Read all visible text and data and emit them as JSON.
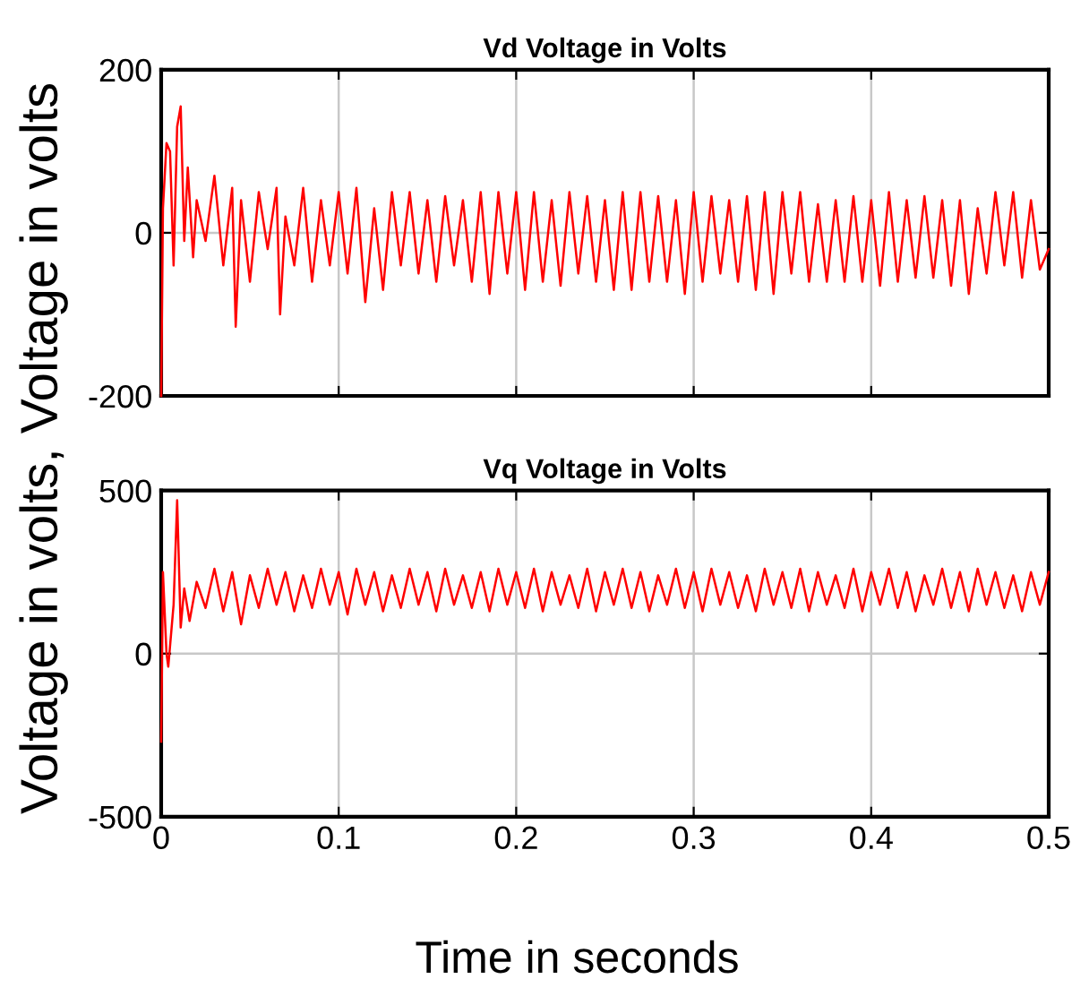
{
  "chart_data": [
    {
      "type": "line",
      "title": "Vd Voltage in Volts",
      "ylabel": "Voltage in volts, Voltage in volts",
      "grid": true,
      "tick_labels": "y",
      "xlim": [
        0,
        0.5
      ],
      "xticks": [
        0,
        0.1,
        0.2,
        0.3,
        0.4,
        0.5
      ],
      "ylim": [
        -200,
        200
      ],
      "yticks": [
        -200,
        0,
        200
      ],
      "x": [
        0,
        0.001,
        0.003,
        0.005,
        0.007,
        0.009,
        0.011,
        0.013,
        0.015,
        0.018,
        0.02,
        0.025,
        0.03,
        0.035,
        0.04,
        0.042,
        0.045,
        0.05,
        0.055,
        0.06,
        0.065,
        0.067,
        0.07,
        0.075,
        0.08,
        0.085,
        0.09,
        0.095,
        0.1,
        0.105,
        0.11,
        0.115,
        0.12,
        0.125,
        0.13,
        0.135,
        0.14,
        0.145,
        0.15,
        0.155,
        0.16,
        0.165,
        0.17,
        0.175,
        0.18,
        0.185,
        0.19,
        0.195,
        0.2,
        0.205,
        0.21,
        0.215,
        0.22,
        0.225,
        0.23,
        0.235,
        0.24,
        0.245,
        0.25,
        0.255,
        0.26,
        0.265,
        0.27,
        0.275,
        0.28,
        0.285,
        0.29,
        0.295,
        0.3,
        0.305,
        0.31,
        0.315,
        0.32,
        0.325,
        0.33,
        0.335,
        0.34,
        0.345,
        0.35,
        0.355,
        0.36,
        0.365,
        0.37,
        0.375,
        0.38,
        0.385,
        0.39,
        0.395,
        0.4,
        0.405,
        0.41,
        0.415,
        0.42,
        0.425,
        0.43,
        0.435,
        0.44,
        0.445,
        0.45,
        0.455,
        0.46,
        0.465,
        0.47,
        0.475,
        0.48,
        0.485,
        0.49,
        0.495,
        0.5
      ],
      "series": [
        {
          "color": "#ff0000",
          "values": [
            -200,
            30,
            110,
            100,
            -40,
            130,
            155,
            -10,
            80,
            -30,
            40,
            -10,
            70,
            -40,
            55,
            -115,
            40,
            -60,
            50,
            -20,
            55,
            -100,
            20,
            -40,
            55,
            -60,
            40,
            -40,
            50,
            -50,
            55,
            -85,
            30,
            -70,
            50,
            -40,
            50,
            -50,
            40,
            -60,
            45,
            -40,
            40,
            -60,
            50,
            -75,
            50,
            -50,
            50,
            -70,
            50,
            -60,
            40,
            -65,
            50,
            -50,
            45,
            -60,
            40,
            -70,
            50,
            -70,
            50,
            -60,
            45,
            -60,
            40,
            -75,
            50,
            -60,
            45,
            -50,
            40,
            -60,
            45,
            -70,
            50,
            -75,
            50,
            -50,
            50,
            -60,
            35,
            -60,
            40,
            -60,
            45,
            -60,
            40,
            -65,
            50,
            -60,
            40,
            -55,
            45,
            -55,
            40,
            -65,
            40,
            -75,
            30,
            -50,
            50,
            -40,
            50,
            -55,
            40,
            -45,
            -20
          ]
        }
      ]
    },
    {
      "type": "line",
      "title": "Vq Voltage in Volts",
      "xlabel": "Time in seconds",
      "grid": true,
      "xlim": [
        0,
        0.5
      ],
      "xticks": [
        0,
        0.1,
        0.2,
        0.3,
        0.4,
        0.5
      ],
      "ylim": [
        -500,
        500
      ],
      "yticks": [
        -500,
        0,
        500
      ],
      "x": [
        0,
        0.001,
        0.003,
        0.004,
        0.007,
        0.009,
        0.011,
        0.013,
        0.016,
        0.02,
        0.025,
        0.03,
        0.035,
        0.04,
        0.045,
        0.05,
        0.055,
        0.06,
        0.065,
        0.07,
        0.075,
        0.08,
        0.085,
        0.09,
        0.095,
        0.1,
        0.105,
        0.11,
        0.115,
        0.12,
        0.125,
        0.13,
        0.135,
        0.14,
        0.145,
        0.15,
        0.155,
        0.16,
        0.165,
        0.17,
        0.175,
        0.18,
        0.185,
        0.19,
        0.195,
        0.2,
        0.205,
        0.21,
        0.215,
        0.22,
        0.225,
        0.23,
        0.235,
        0.24,
        0.245,
        0.25,
        0.255,
        0.26,
        0.265,
        0.27,
        0.275,
        0.28,
        0.285,
        0.29,
        0.295,
        0.3,
        0.305,
        0.31,
        0.315,
        0.32,
        0.325,
        0.33,
        0.335,
        0.34,
        0.345,
        0.35,
        0.355,
        0.36,
        0.365,
        0.37,
        0.375,
        0.38,
        0.385,
        0.39,
        0.395,
        0.4,
        0.405,
        0.41,
        0.415,
        0.42,
        0.425,
        0.43,
        0.435,
        0.44,
        0.445,
        0.45,
        0.455,
        0.46,
        0.465,
        0.47,
        0.475,
        0.48,
        0.485,
        0.49,
        0.495,
        0.5
      ],
      "series": [
        {
          "color": "#ff0000",
          "values": [
            -270,
            250,
            0,
            -40,
            150,
            470,
            80,
            200,
            100,
            220,
            140,
            260,
            130,
            250,
            90,
            240,
            140,
            260,
            150,
            250,
            130,
            240,
            140,
            260,
            150,
            250,
            120,
            260,
            150,
            250,
            130,
            240,
            140,
            260,
            150,
            250,
            130,
            260,
            150,
            240,
            140,
            250,
            130,
            260,
            150,
            250,
            140,
            260,
            130,
            250,
            150,
            240,
            140,
            260,
            130,
            250,
            150,
            260,
            140,
            250,
            130,
            240,
            150,
            260,
            140,
            250,
            130,
            260,
            150,
            250,
            140,
            240,
            130,
            260,
            150,
            250,
            140,
            260,
            130,
            250,
            150,
            240,
            140,
            260,
            130,
            250,
            150,
            260,
            140,
            250,
            130,
            240,
            150,
            260,
            140,
            250,
            130,
            260,
            150,
            250,
            140,
            240,
            130,
            250,
            150,
            250
          ]
        }
      ]
    }
  ]
}
